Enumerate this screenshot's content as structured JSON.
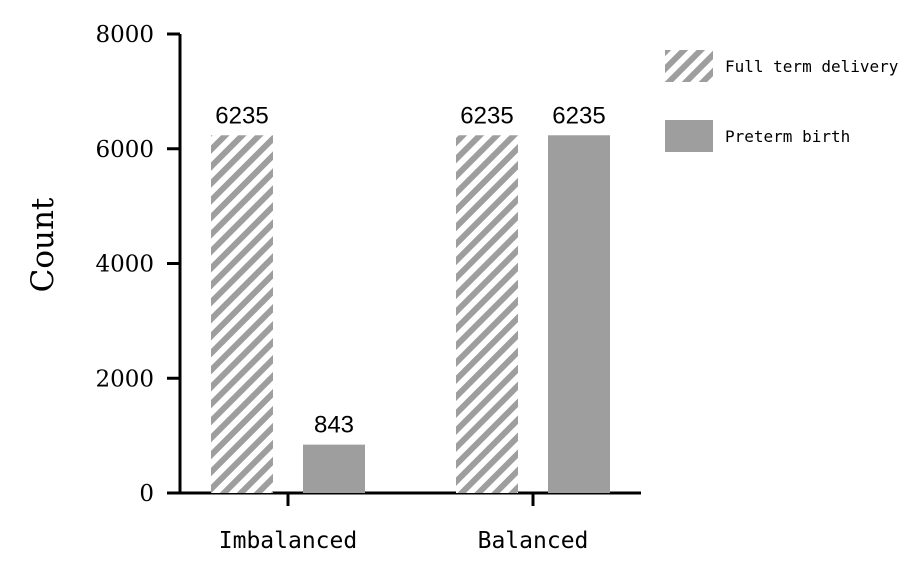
{
  "chart_data": {
    "type": "bar",
    "title": "",
    "xlabel": "",
    "ylabel": "Count",
    "ylim": [
      0,
      8000
    ],
    "yticks": [
      0,
      2000,
      4000,
      6000,
      8000
    ],
    "grid": false,
    "legend_position": "top-right",
    "categories": [
      "Imbalanced",
      "Balanced"
    ],
    "series": [
      {
        "name": "Full term delivery",
        "values": [
          6235,
          6235
        ],
        "data_labels": [
          "6235",
          "6235"
        ],
        "fill": "hatched",
        "color": "#9e9e9e"
      },
      {
        "name": "Preterm birth",
        "values": [
          843,
          6235
        ],
        "data_labels": [
          "843",
          "6235"
        ],
        "fill": "solid",
        "color": "#9e9e9e"
      }
    ]
  }
}
